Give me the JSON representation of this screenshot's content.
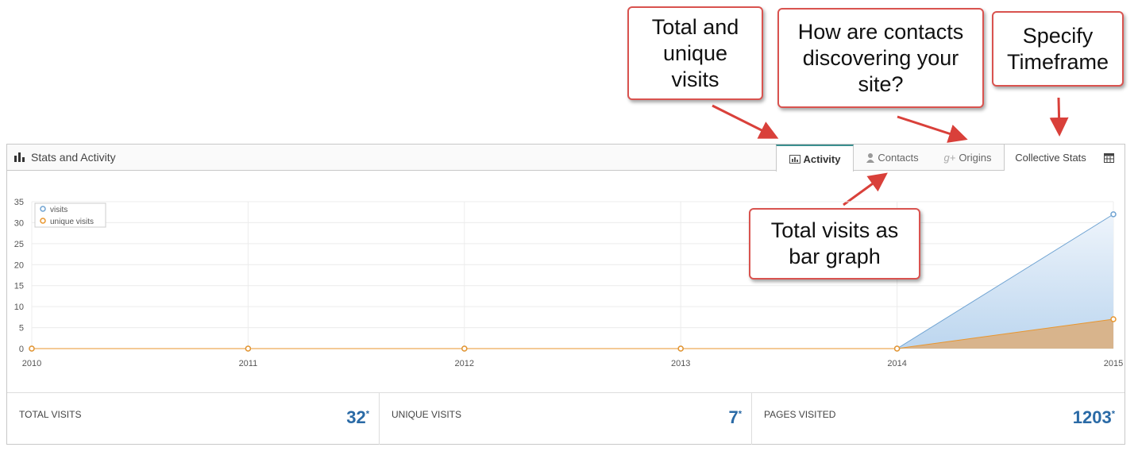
{
  "callouts": [
    "Total and unique visits",
    "How are contacts discovering your site?",
    "Specify Timeframe",
    "Total visits as bar graph"
  ],
  "panel": {
    "title": "Stats and Activity",
    "tabs": [
      "Activity",
      "Contacts",
      "Origins",
      "Collective Stats"
    ]
  },
  "chart_data": {
    "type": "line",
    "area": true,
    "x": [
      2010,
      2011,
      2012,
      2013,
      2014,
      2015
    ],
    "series": [
      {
        "name": "visits",
        "color": "#6fa3d2",
        "values": [
          0,
          0,
          0,
          0,
          0,
          32
        ]
      },
      {
        "name": "unique visits",
        "color": "#e8962e",
        "values": [
          0,
          0,
          0,
          0,
          0,
          7
        ]
      }
    ],
    "xlim": [
      2010,
      2015
    ],
    "xticks": [
      2010,
      2011,
      2012,
      2013,
      2014,
      2015
    ],
    "ylim": [
      0,
      35
    ],
    "yticks": [
      0,
      5,
      10,
      15,
      20,
      25,
      30,
      35
    ],
    "grid": true
  },
  "stats": [
    {
      "label": "TOTAL VISITS",
      "value": 32,
      "note": "*"
    },
    {
      "label": "UNIQUE VISITS",
      "value": 7,
      "note": "*"
    },
    {
      "label": "PAGES VISITED",
      "value": 1203,
      "note": "*"
    }
  ]
}
